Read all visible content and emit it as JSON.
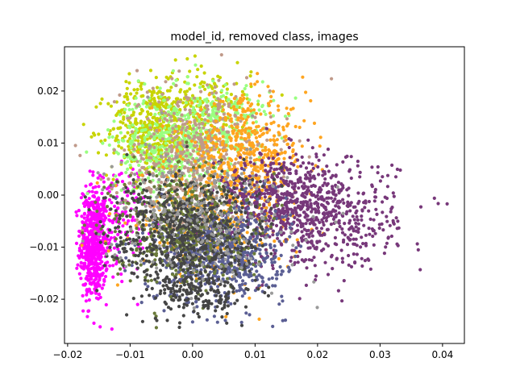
{
  "chart_data": {
    "type": "scatter",
    "title": "model_id, removed class, images",
    "xlabel": "",
    "ylabel": "",
    "xlim": [
      -0.0205,
      0.0435
    ],
    "ylim": [
      -0.0285,
      0.0285
    ],
    "grid": false,
    "x_ticks": [
      -0.02,
      -0.01,
      0.0,
      0.01,
      0.02,
      0.03,
      0.04
    ],
    "x_tick_labels": [
      "−0.02",
      "−0.01",
      "0.00",
      "0.01",
      "0.02",
      "0.03",
      "0.04"
    ],
    "y_ticks": [
      -0.02,
      -0.01,
      0.0,
      0.01,
      0.02
    ],
    "y_tick_labels": [
      "−0.02",
      "−0.01",
      "0.00",
      "0.01",
      "0.02"
    ],
    "series": [
      {
        "color": "#ff00ff",
        "count": 700,
        "clusters": [
          {
            "cx": -0.0158,
            "cy": -0.0095,
            "sx": 0.0011,
            "sy": 0.0055,
            "n": 560
          },
          {
            "cx": -0.0118,
            "cy": -0.0045,
            "sx": 0.0022,
            "sy": 0.0055,
            "n": 140
          }
        ]
      },
      {
        "color": "#c8d400",
        "count": 650,
        "clusters": [
          {
            "cx": -0.0065,
            "cy": 0.0125,
            "sx": 0.0035,
            "sy": 0.0045,
            "n": 450
          },
          {
            "cx": 0.0015,
            "cy": 0.0175,
            "sx": 0.004,
            "sy": 0.004,
            "n": 200
          }
        ]
      },
      {
        "color": "#99ff80",
        "count": 650,
        "clusters": [
          {
            "cx": -0.0035,
            "cy": 0.0095,
            "sx": 0.0045,
            "sy": 0.005,
            "n": 450
          },
          {
            "cx": 0.005,
            "cy": 0.014,
            "sx": 0.004,
            "sy": 0.004,
            "n": 200
          }
        ]
      },
      {
        "color": "#c09a8a",
        "count": 600,
        "clusters": [
          {
            "cx": 0.0005,
            "cy": 0.006,
            "sx": 0.006,
            "sy": 0.0075,
            "n": 600
          }
        ]
      },
      {
        "color": "#ffa520",
        "count": 750,
        "clusters": [
          {
            "cx": 0.0085,
            "cy": 0.0085,
            "sx": 0.005,
            "sy": 0.005,
            "n": 450
          },
          {
            "cx": 0.004,
            "cy": -0.0045,
            "sx": 0.0065,
            "sy": 0.0055,
            "n": 300
          }
        ]
      },
      {
        "color": "#77387a",
        "count": 900,
        "clusters": [
          {
            "cx": 0.0195,
            "cy": -0.0035,
            "sx": 0.0065,
            "sy": 0.0052,
            "n": 700
          },
          {
            "cx": 0.0125,
            "cy": 0.0005,
            "sx": 0.0045,
            "sy": 0.004,
            "n": 200
          }
        ]
      },
      {
        "color": "#5b5f94",
        "count": 700,
        "clusters": [
          {
            "cx": 0.0045,
            "cy": -0.011,
            "sx": 0.0052,
            "sy": 0.0048,
            "n": 700
          }
        ]
      },
      {
        "color": "#6a7a3a",
        "count": 500,
        "clusters": [
          {
            "cx": -0.002,
            "cy": -0.006,
            "sx": 0.0055,
            "sy": 0.0055,
            "n": 500
          }
        ]
      },
      {
        "color": "#454545",
        "count": 800,
        "clusters": [
          {
            "cx": -0.001,
            "cy": -0.0075,
            "sx": 0.0065,
            "sy": 0.006,
            "n": 650
          },
          {
            "cx": 0.001,
            "cy": -0.019,
            "sx": 0.0035,
            "sy": 0.0025,
            "n": 150
          }
        ]
      },
      {
        "color": "#9a9a9a",
        "count": 250,
        "clusters": [
          {
            "cx": 0.001,
            "cy": -0.003,
            "sx": 0.007,
            "sy": 0.0065,
            "n": 250
          }
        ]
      }
    ]
  }
}
